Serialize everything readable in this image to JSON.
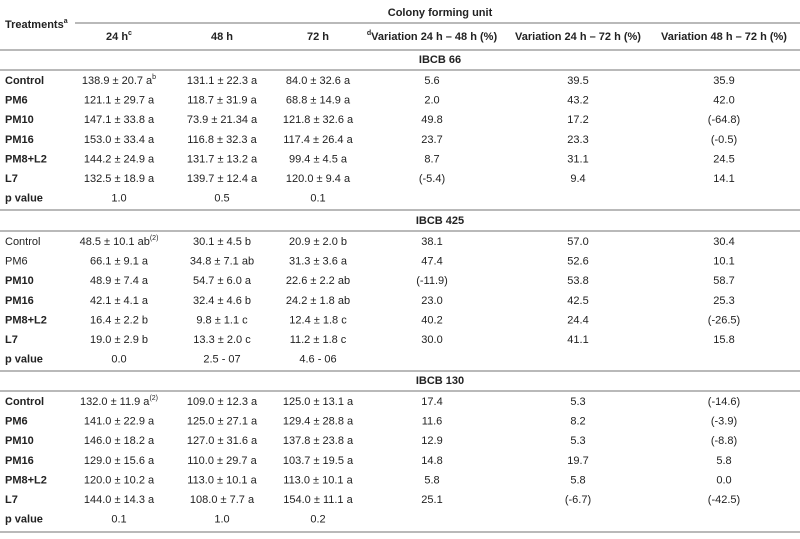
{
  "header": {
    "treatments": {
      "text": "Treatments",
      "sup": "a"
    },
    "colony": "Colony forming unit",
    "columns": [
      {
        "text": "24 h",
        "sup": "c"
      },
      "48 h",
      "72 h",
      {
        "pre": "d",
        "text": "Variation 24 h – 48 h (%)"
      },
      "Variation 24 h – 72 h (%)",
      "Variation 48 h – 72 h (%)"
    ]
  },
  "groups": [
    {
      "title": "IBCB 66",
      "rows": [
        {
          "label": "Control",
          "bold": true,
          "cells": [
            {
              "text": "138.9 ± 20.7 a",
              "sup": "b"
            },
            "131.1 ± 22.3 a",
            "84.0 ± 32.6 a",
            "5.6",
            "39.5",
            "35.9"
          ]
        },
        {
          "label": "PM6",
          "bold": true,
          "cells": [
            "121.1 ± 29.7 a",
            "118.7 ± 31.9 a",
            "68.8 ± 14.9 a",
            "2.0",
            "43.2",
            "42.0"
          ]
        },
        {
          "label": "PM10",
          "bold": true,
          "cells": [
            "147.1 ± 33.8 a",
            "73.9 ± 21.34 a",
            "121.8 ± 32.6 a",
            "49.8",
            "17.2",
            "(-64.8)"
          ]
        },
        {
          "label": "PM16",
          "bold": true,
          "cells": [
            "153.0 ± 33.4 a",
            "116.8 ± 32.3 a",
            "117.4 ± 26.4 a",
            "23.7",
            "23.3",
            "(-0.5)"
          ]
        },
        {
          "label": "PM8+L2",
          "bold": true,
          "cells": [
            "144.2 ± 24.9 a",
            "131.7 ± 13.2 a",
            "99.4 ± 4.5 a",
            "8.7",
            "31.1",
            "24.5"
          ]
        },
        {
          "label": "L7",
          "bold": true,
          "cells": [
            "132.5 ± 18.9 a",
            "139.7 ± 12.4 a",
            "120.0 ± 9.4 a",
            "(-5.4)",
            "9.4",
            "14.1"
          ]
        },
        {
          "label": "p value",
          "bold": true,
          "cells": [
            "1.0",
            "0.5",
            "0.1"
          ]
        }
      ]
    },
    {
      "title": "IBCB 425",
      "rows": [
        {
          "label": "Control",
          "bold": false,
          "cells": [
            {
              "text": "48.5 ± 10.1 ab",
              "sup": "(2)"
            },
            "30.1 ± 4.5 b",
            "20.9 ± 2.0 b",
            "38.1",
            "57.0",
            "30.4"
          ]
        },
        {
          "label": "PM6",
          "bold": false,
          "cells": [
            "66.1 ± 9.1 a",
            "34.8 ± 7.1 ab",
            "31.3 ± 3.6 a",
            "47.4",
            "52.6",
            "10.1"
          ]
        },
        {
          "label": "PM10",
          "bold": true,
          "cells": [
            "48.9 ± 7.4 a",
            "54.7 ± 6.0 a",
            "22.6 ± 2.2 ab",
            "(-11.9)",
            "53.8",
            "58.7"
          ]
        },
        {
          "label": "PM16",
          "bold": true,
          "cells": [
            "42.1 ± 4.1 a",
            "32.4 ± 4.6 b",
            "24.2 ± 1.8 ab",
            "23.0",
            "42.5",
            "25.3"
          ]
        },
        {
          "label": "PM8+L2",
          "bold": true,
          "cells": [
            "16.4 ± 2.2 b",
            "9.8 ± 1.1 c",
            "12.4 ± 1.8 c",
            "40.2",
            "24.4",
            "(-26.5)"
          ]
        },
        {
          "label": "L7",
          "bold": true,
          "cells": [
            "19.0 ± 2.9 b",
            "13.3 ± 2.0 c",
            "11.2 ± 1.8 c",
            "30.0",
            "41.1",
            "15.8"
          ]
        },
        {
          "label": "p value",
          "bold": true,
          "cells": [
            "0.0",
            "2.5 - 07",
            "4.6 - 06"
          ]
        }
      ]
    },
    {
      "title": "IBCB 130",
      "rows": [
        {
          "label": "Control",
          "bold": true,
          "cells": [
            {
              "text": "132.0 ± 11.9 a",
              "sup": "(2)"
            },
            "109.0 ± 12.3 a",
            "125.0 ± 13.1 a",
            "17.4",
            "5.3",
            "(-14.6)"
          ]
        },
        {
          "label": "PM6",
          "bold": true,
          "cells": [
            "141.0 ± 22.9 a",
            "125.0 ± 27.1 a",
            "129.4 ± 28.8 a",
            "11.6",
            "8.2",
            "(-3.9)"
          ]
        },
        {
          "label": "PM10",
          "bold": true,
          "cells": [
            "146.0 ± 18.2 a",
            "127.0 ± 31.6 a",
            "137.8 ± 23.8 a",
            "12.9",
            "5.3",
            "(-8.8)"
          ]
        },
        {
          "label": "PM16",
          "bold": true,
          "cells": [
            "129.0 ± 15.6 a",
            "110.0 ± 29.7 a",
            "103.7 ± 19.5 a",
            "14.8",
            "19.7",
            "5.8"
          ]
        },
        {
          "label": "PM8+L2",
          "bold": true,
          "cells": [
            "120.0 ± 10.2 a",
            "113.0 ± 10.1 a",
            "113.0 ± 10.1 a",
            "5.8",
            "5.8",
            "0.0"
          ]
        },
        {
          "label": "L7",
          "bold": true,
          "cells": [
            "144.0 ± 14.3 a",
            "108.0 ± 7.7 a",
            "154.0 ± 11.1 a",
            "25.1",
            "(-6.7)",
            "(-42.5)"
          ]
        },
        {
          "label": "p value",
          "bold": true,
          "cells": [
            "0.1",
            "1.0",
            "0.2"
          ]
        }
      ]
    }
  ]
}
